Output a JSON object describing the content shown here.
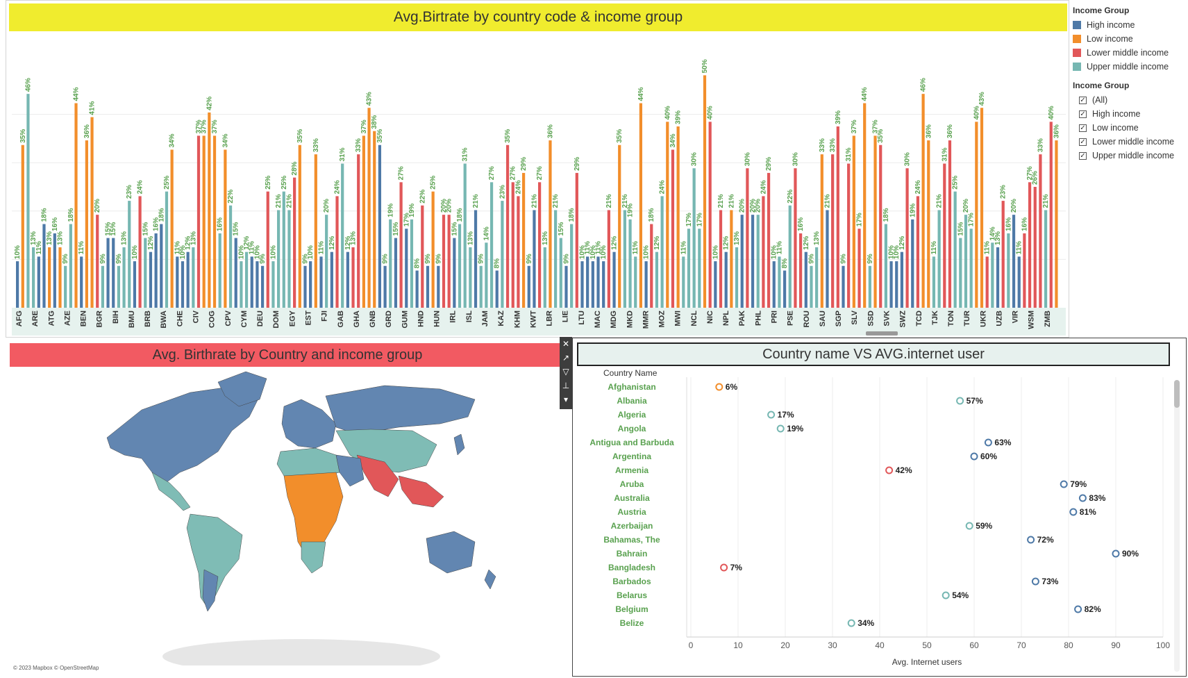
{
  "colors": {
    "High income": "#4e79a7",
    "Low income": "#f28e2b",
    "Lower middle income": "#e15759",
    "Upper middle income": "#76b7b2",
    "label": "#59a14f"
  },
  "top": {
    "title": "Avg.Birtrate by country code & income group"
  },
  "legend": {
    "title1": "Income Group",
    "items": [
      "High income",
      "Low income",
      "Lower middle income",
      "Upper middle income"
    ],
    "title2": "Income Group",
    "filters": [
      "(All)",
      "High income",
      "Low income",
      "Lower middle income",
      "Upper middle income"
    ]
  },
  "map": {
    "title": "Avg. Birthrate by Country and income group",
    "copyright": "© 2023 Mapbox © OpenStreetMap"
  },
  "dot": {
    "title": "Country name VS AVG.internet user"
  },
  "chart_data": [
    {
      "type": "bar",
      "title": "Avg.Birtrate by country code & income group",
      "xlabels": [
        "AFG",
        "ARE",
        "ATG",
        "AZE",
        "BEN",
        "BGR",
        "BIH",
        "BMU",
        "BRB",
        "BWA",
        "CHE",
        "CIV",
        "COG",
        "CPV",
        "CYM",
        "DEU",
        "DOM",
        "EGY",
        "EST",
        "FJI",
        "GAB",
        "GHA",
        "GNB",
        "GRD",
        "GUM",
        "HND",
        "HUN",
        "IRL",
        "ISL",
        "JAM",
        "KAZ",
        "KHM",
        "KWT",
        "LBR",
        "LIE",
        "LTU",
        "MAC",
        "MDG",
        "MKD",
        "MMR",
        "MOZ",
        "MWI",
        "NCL",
        "NIC",
        "NPL",
        "PAK",
        "PHL",
        "PRI",
        "PSE",
        "ROU",
        "SAU",
        "SGP",
        "SLV",
        "SSD",
        "SVK",
        "SWZ",
        "TCD",
        "TJK",
        "TON",
        "TUR",
        "UKR",
        "UZB",
        "VIR",
        "WSM",
        "ZMB"
      ],
      "ylim": [
        0,
        52
      ],
      "bars": [
        [
          "H",
          10
        ],
        [
          "L",
          35
        ],
        [
          "U",
          46
        ],
        [
          "U",
          13
        ],
        [
          "H",
          11
        ],
        [
          "H",
          18
        ],
        [
          "L",
          13
        ],
        [
          "H",
          16
        ],
        [
          "L",
          13
        ],
        [
          "U",
          9
        ],
        [
          "U",
          18
        ],
        [
          "L",
          44
        ],
        [
          "H",
          11
        ],
        [
          "L",
          36
        ],
        [
          "L",
          41
        ],
        [
          "M",
          20
        ],
        [
          "U",
          9
        ],
        [
          "H",
          15
        ],
        [
          "H",
          15
        ],
        [
          "U",
          9
        ],
        [
          "U",
          13
        ],
        [
          "U",
          23
        ],
        [
          "H",
          10
        ],
        [
          "M",
          24
        ],
        [
          "U",
          15
        ],
        [
          "H",
          12
        ],
        [
          "H",
          16
        ],
        [
          "H",
          18
        ],
        [
          "U",
          25
        ],
        [
          "L",
          34
        ],
        [
          "H",
          11
        ],
        [
          "H",
          10
        ],
        [
          "H",
          12
        ],
        [
          "U",
          13
        ],
        [
          "M",
          37
        ],
        [
          "L",
          37
        ],
        [
          "L",
          42
        ],
        [
          "L",
          37
        ],
        [
          "U",
          16
        ],
        [
          "L",
          34
        ],
        [
          "U",
          22
        ],
        [
          "H",
          15
        ],
        [
          "U",
          10
        ],
        [
          "U",
          12
        ],
        [
          "H",
          11
        ],
        [
          "H",
          10
        ],
        [
          "H",
          9
        ],
        [
          "M",
          25
        ],
        [
          "U",
          10
        ],
        [
          "U",
          21
        ],
        [
          "U",
          25
        ],
        [
          "U",
          21
        ],
        [
          "M",
          28
        ],
        [
          "L",
          35
        ],
        [
          "H",
          9
        ],
        [
          "H",
          10
        ],
        [
          "L",
          33
        ],
        [
          "H",
          11
        ],
        [
          "U",
          20
        ],
        [
          "H",
          12
        ],
        [
          "M",
          24
        ],
        [
          "U",
          31
        ],
        [
          "H",
          12
        ],
        [
          "M",
          13
        ],
        [
          "M",
          33
        ],
        [
          "L",
          37
        ],
        [
          "L",
          43
        ],
        [
          "L",
          38
        ],
        [
          "H",
          35
        ],
        [
          "H",
          9
        ],
        [
          "U",
          19
        ],
        [
          "H",
          15
        ],
        [
          "M",
          27
        ],
        [
          "H",
          17
        ],
        [
          "U",
          19
        ],
        [
          "H",
          8
        ],
        [
          "M",
          22
        ],
        [
          "H",
          9
        ],
        [
          "L",
          25
        ],
        [
          "H",
          9
        ],
        [
          "M",
          20
        ],
        [
          "M",
          20
        ],
        [
          "H",
          15
        ],
        [
          "U",
          18
        ],
        [
          "U",
          31
        ],
        [
          "U",
          13
        ],
        [
          "H",
          21
        ],
        [
          "U",
          9
        ],
        [
          "U",
          14
        ],
        [
          "U",
          27
        ],
        [
          "H",
          8
        ],
        [
          "U",
          23
        ],
        [
          "M",
          35
        ],
        [
          "M",
          27
        ],
        [
          "M",
          24
        ],
        [
          "L",
          29
        ],
        [
          "H",
          9
        ],
        [
          "H",
          21
        ],
        [
          "M",
          27
        ],
        [
          "U",
          13
        ],
        [
          "L",
          36
        ],
        [
          "U",
          21
        ],
        [
          "U",
          15
        ],
        [
          "H",
          9
        ],
        [
          "U",
          18
        ],
        [
          "M",
          29
        ],
        [
          "H",
          10
        ],
        [
          "H",
          11
        ],
        [
          "H",
          10
        ],
        [
          "H",
          11
        ],
        [
          "H",
          10
        ],
        [
          "M",
          21
        ],
        [
          "H",
          12
        ],
        [
          "L",
          35
        ],
        [
          "U",
          21
        ],
        [
          "U",
          19
        ],
        [
          "U",
          11
        ],
        [
          "L",
          44
        ],
        [
          "H",
          10
        ],
        [
          "M",
          18
        ],
        [
          "U",
          12
        ],
        [
          "U",
          24
        ],
        [
          "L",
          40
        ],
        [
          "M",
          34
        ],
        [
          "L",
          39
        ],
        [
          "U",
          11
        ],
        [
          "U",
          17
        ],
        [
          "U",
          30
        ],
        [
          "U",
          17
        ],
        [
          "L",
          50
        ],
        [
          "M",
          40
        ],
        [
          "H",
          10
        ],
        [
          "M",
          21
        ],
        [
          "H",
          12
        ],
        [
          "L",
          21
        ],
        [
          "U",
          13
        ],
        [
          "H",
          20
        ],
        [
          "M",
          30
        ],
        [
          "H",
          20
        ],
        [
          "U",
          20
        ],
        [
          "M",
          24
        ],
        [
          "M",
          29
        ],
        [
          "H",
          10
        ],
        [
          "U",
          11
        ],
        [
          "H",
          8
        ],
        [
          "U",
          22
        ],
        [
          "M",
          30
        ],
        [
          "M",
          16
        ],
        [
          "H",
          12
        ],
        [
          "U",
          9
        ],
        [
          "U",
          13
        ],
        [
          "L",
          33
        ],
        [
          "H",
          21
        ],
        [
          "M",
          33
        ],
        [
          "M",
          39
        ],
        [
          "H",
          9
        ],
        [
          "M",
          31
        ],
        [
          "L",
          37
        ],
        [
          "M",
          17
        ],
        [
          "L",
          44
        ],
        [
          "U",
          9
        ],
        [
          "L",
          37
        ],
        [
          "M",
          35
        ],
        [
          "U",
          18
        ],
        [
          "H",
          10
        ],
        [
          "H",
          10
        ],
        [
          "H",
          12
        ],
        [
          "M",
          30
        ],
        [
          "H",
          19
        ],
        [
          "M",
          24
        ],
        [
          "L",
          46
        ],
        [
          "L",
          36
        ],
        [
          "U",
          11
        ],
        [
          "U",
          21
        ],
        [
          "M",
          31
        ],
        [
          "M",
          36
        ],
        [
          "U",
          25
        ],
        [
          "U",
          15
        ],
        [
          "U",
          20
        ],
        [
          "U",
          17
        ],
        [
          "L",
          40
        ],
        [
          "L",
          43
        ],
        [
          "M",
          11
        ],
        [
          "U",
          14
        ],
        [
          "H",
          13
        ],
        [
          "M",
          23
        ],
        [
          "U",
          16
        ],
        [
          "H",
          20
        ],
        [
          "H",
          11
        ],
        [
          "M",
          16
        ],
        [
          "M",
          27
        ],
        [
          "M",
          26
        ],
        [
          "M",
          33
        ],
        [
          "U",
          21
        ],
        [
          "M",
          40
        ],
        [
          "L",
          36
        ]
      ]
    },
    {
      "type": "scatter",
      "title": "Country name VS AVG.internet user",
      "ylabel": "Country Name",
      "xlabel": "Avg. Internet users",
      "xlim": [
        0,
        100
      ],
      "xticks": [
        "0",
        "10",
        "20",
        "30",
        "40",
        "50",
        "60",
        "70",
        "80",
        "90",
        "100"
      ],
      "points": [
        {
          "name": "Afghanistan",
          "value": 6,
          "group": "Low income",
          "label": "6%"
        },
        {
          "name": "Albania",
          "value": 57,
          "group": "Upper middle income",
          "label": "57%"
        },
        {
          "name": "Algeria",
          "value": 17,
          "group": "Upper middle income",
          "label": "17%"
        },
        {
          "name": "Angola",
          "value": 19,
          "group": "Upper middle income",
          "label": "19%"
        },
        {
          "name": "Antigua and Barbuda",
          "value": 63,
          "group": "High income",
          "label": "63%"
        },
        {
          "name": "Argentina",
          "value": 60,
          "group": "High income",
          "label": "60%"
        },
        {
          "name": "Armenia",
          "value": 42,
          "group": "Lower middle income",
          "label": "42%"
        },
        {
          "name": "Aruba",
          "value": 79,
          "group": "High income",
          "label": "79%"
        },
        {
          "name": "Australia",
          "value": 83,
          "group": "High income",
          "label": "83%"
        },
        {
          "name": "Austria",
          "value": 81,
          "group": "High income",
          "label": "81%"
        },
        {
          "name": "Azerbaijan",
          "value": 59,
          "group": "Upper middle income",
          "label": "59%"
        },
        {
          "name": "Bahamas, The",
          "value": 72,
          "group": "High income",
          "label": "72%"
        },
        {
          "name": "Bahrain",
          "value": 90,
          "group": "High income",
          "label": "90%"
        },
        {
          "name": "Bangladesh",
          "value": 7,
          "group": "Lower middle income",
          "label": "7%"
        },
        {
          "name": "Barbados",
          "value": 73,
          "group": "High income",
          "label": "73%"
        },
        {
          "name": "Belarus",
          "value": 54,
          "group": "Upper middle income",
          "label": "54%"
        },
        {
          "name": "Belgium",
          "value": 82,
          "group": "High income",
          "label": "82%"
        },
        {
          "name": "Belize",
          "value": 34,
          "group": "Upper middle income",
          "label": "34%"
        }
      ]
    }
  ]
}
